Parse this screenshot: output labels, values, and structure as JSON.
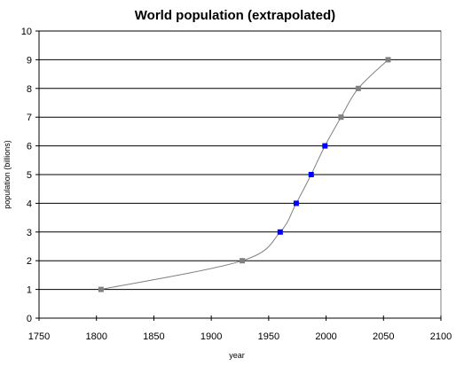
{
  "chart_data": {
    "type": "line",
    "title": "World population (extrapolated)",
    "xlabel": "year",
    "ylabel": "population (billions)",
    "xlim": [
      1750,
      2100
    ],
    "ylim": [
      0,
      10
    ],
    "x_ticks": [
      "1750",
      "1800",
      "1850",
      "1900",
      "1950",
      "2000",
      "2050",
      "2100"
    ],
    "y_ticks": [
      "0",
      "1",
      "2",
      "3",
      "4",
      "5",
      "6",
      "7",
      "8",
      "9",
      "10"
    ],
    "grid": "horizontal",
    "series": [
      {
        "points": [
          {
            "x": 1804,
            "y": 1,
            "status": "estimated"
          },
          {
            "x": 1927,
            "y": 2,
            "status": "estimated"
          },
          {
            "x": 1960,
            "y": 3,
            "status": "recorded"
          },
          {
            "x": 1974,
            "y": 4,
            "status": "recorded"
          },
          {
            "x": 1987,
            "y": 5,
            "status": "recorded"
          },
          {
            "x": 1999,
            "y": 6,
            "status": "recorded"
          },
          {
            "x": 2013,
            "y": 7,
            "status": "projected"
          },
          {
            "x": 2028,
            "y": 8,
            "status": "projected"
          },
          {
            "x": 2054,
            "y": 9,
            "status": "projected"
          }
        ]
      }
    ],
    "colors": {
      "recorded_marker": "#0000ff",
      "other_marker": "#808080",
      "line": "#808080",
      "gridline": "#000000",
      "plot_border": "#808080"
    }
  }
}
